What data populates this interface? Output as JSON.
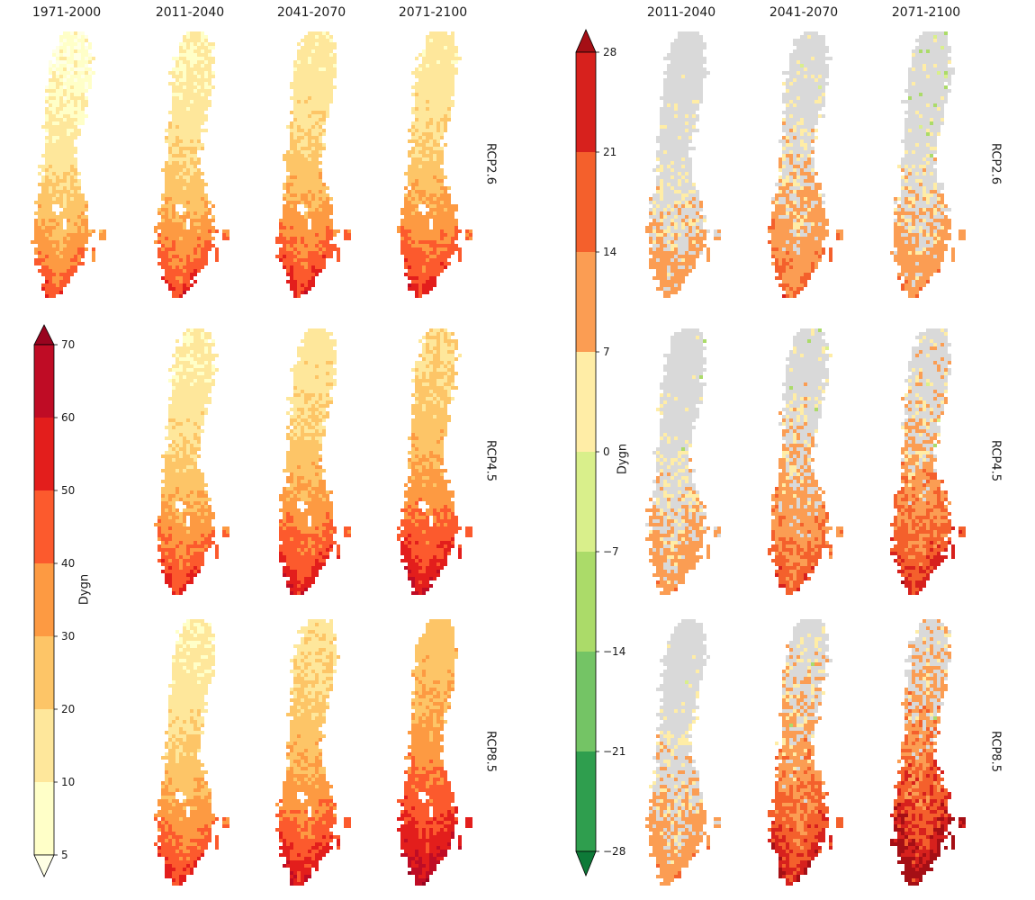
{
  "figure": {
    "left_panel": {
      "columns": [
        "1971-2000",
        "2011-2040",
        "2041-2070",
        "2071-2100"
      ],
      "rows": [
        "RCP2.6",
        "RCP4.5",
        "RCP8.5"
      ],
      "colorbar": {
        "label": "Dygn",
        "ticks": [
          70,
          60,
          50,
          40,
          30,
          20,
          10,
          5
        ],
        "segment_colors_top_to_bottom": [
          "#bf0c25",
          "#e31e1c",
          "#fc5a2d",
          "#fd9a42",
          "#fdc567",
          "#fee79b",
          "#ffffc8"
        ],
        "arrow_top_color": "#99041f",
        "arrow_bottom_color": "#ffffe5"
      }
    },
    "right_panel": {
      "columns": [
        "2011-2040",
        "2041-2070",
        "2071-2100"
      ],
      "rows": [
        "RCP2.6",
        "RCP4.5",
        "RCP8.5"
      ],
      "colorbar": {
        "label": "Dygn",
        "ticks": [
          28,
          21,
          14,
          7,
          0,
          -7,
          -14,
          -21,
          -28
        ],
        "segment_colors_top_to_bottom": [
          "#d7211d",
          "#f4602c",
          "#fb9d53",
          "#ffeda6",
          "#d9ef8b",
          "#abdb69",
          "#74c465",
          "#2f9e4e"
        ],
        "arrow_top_color": "#a50f15",
        "arrow_bottom_color": "#0e7a38",
        "nodata_color": "#d9d9d9"
      }
    },
    "map_colors": {
      "left_bounds": [
        5,
        10,
        20,
        30,
        40,
        50,
        60,
        70
      ],
      "left_colors": [
        "#ffffc8",
        "#fee79b",
        "#fdc567",
        "#fd9a42",
        "#fc5a2d",
        "#e31e1c",
        "#bf0c25"
      ],
      "left_under": "#ffffe5",
      "left_over": "#99041f",
      "right_bounds": [
        -28,
        -21,
        -14,
        -7,
        0,
        7,
        14,
        21,
        28
      ],
      "right_colors": [
        "#2f9e4e",
        "#74c465",
        "#abdb69",
        "#d9ef8b",
        "#ffeda6",
        "#fb9d53",
        "#f4602c",
        "#d7211d"
      ],
      "right_under": "#0e7a38",
      "right_over": "#a50f15",
      "right_nodata": "#d9d9d9"
    }
  },
  "chart_data": [
    {
      "type": "heatmap",
      "panel": "left",
      "geography": "Sweden (gridded choropleth maps)",
      "title": "",
      "columns": [
        "1971-2000",
        "2011-2040",
        "2041-2070",
        "2071-2100"
      ],
      "rows": [
        "RCP2.6",
        "RCP4.5",
        "RCP8.5"
      ],
      "grid": [
        [
          "map",
          "map",
          "map",
          "map"
        ],
        [
          null,
          "map",
          "map",
          "map"
        ],
        [
          null,
          "map",
          "map",
          "map"
        ]
      ],
      "colorbar": {
        "label": "Dygn",
        "ticks": [
          5,
          10,
          20,
          30,
          40,
          50,
          60,
          70
        ],
        "extend": "both",
        "colormap": "YlOrRd",
        "orientation": "vertical"
      },
      "value_range": [
        5,
        70
      ],
      "pattern": "Number of dygn (days) per year: roughly 5-20 in northern Sweden, 20-40 in central Sweden, 40-70+ along the southern and coastal areas; maps get progressively redder (higher values) for later periods and higher RCP scenarios."
    },
    {
      "type": "heatmap",
      "panel": "right",
      "geography": "Sweden (gridded choropleth maps)",
      "title": "",
      "columns": [
        "2011-2040",
        "2041-2070",
        "2071-2100"
      ],
      "rows": [
        "RCP2.6",
        "RCP4.5",
        "RCP8.5"
      ],
      "grid": [
        [
          "map",
          "map",
          "map"
        ],
        [
          "map",
          "map",
          "map"
        ],
        [
          "map",
          "map",
          "map"
        ]
      ],
      "colorbar": {
        "label": "Dygn",
        "ticks": [
          -28,
          -21,
          -14,
          -7,
          0,
          7,
          14,
          21,
          28
        ],
        "extend": "both",
        "colormap": "RdYlGn reversed (red positive, green negative)",
        "orientation": "vertical"
      },
      "value_range": [
        -28,
        28
      ],
      "pattern": "Change in dygn relative to 1971-2000. Grey cells indicate no/insignificant change; orange to red patches (+7 to +28 dygn) are concentrated in southern and coastal Sweden and expand with later periods and higher RCPs; scattered pale-green (negative) cells appear mainly in the north, most visibly for RCP2.6 2071-2100."
    }
  ]
}
